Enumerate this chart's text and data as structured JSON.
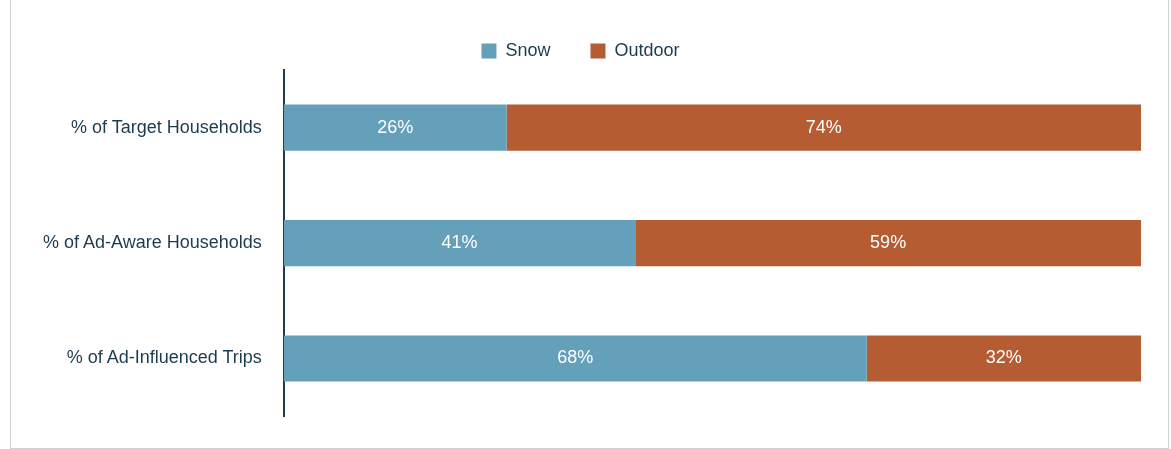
{
  "chart_data": {
    "type": "bar",
    "orientation": "horizontal",
    "stacked": true,
    "legend": "top",
    "categories": [
      "% of Target Households",
      "% of Ad-Aware Households",
      "% of Ad-Influenced Trips"
    ],
    "series": [
      {
        "name": "Snow",
        "color": "#65a0bb",
        "values": [
          26,
          41,
          68
        ],
        "value_labels": [
          "26%",
          "41%",
          "68%"
        ]
      },
      {
        "name": "Outdoor",
        "color": "#b55c33",
        "values": [
          74,
          59,
          32
        ],
        "value_labels": [
          "74%",
          "59%",
          "32%"
        ]
      }
    ]
  }
}
